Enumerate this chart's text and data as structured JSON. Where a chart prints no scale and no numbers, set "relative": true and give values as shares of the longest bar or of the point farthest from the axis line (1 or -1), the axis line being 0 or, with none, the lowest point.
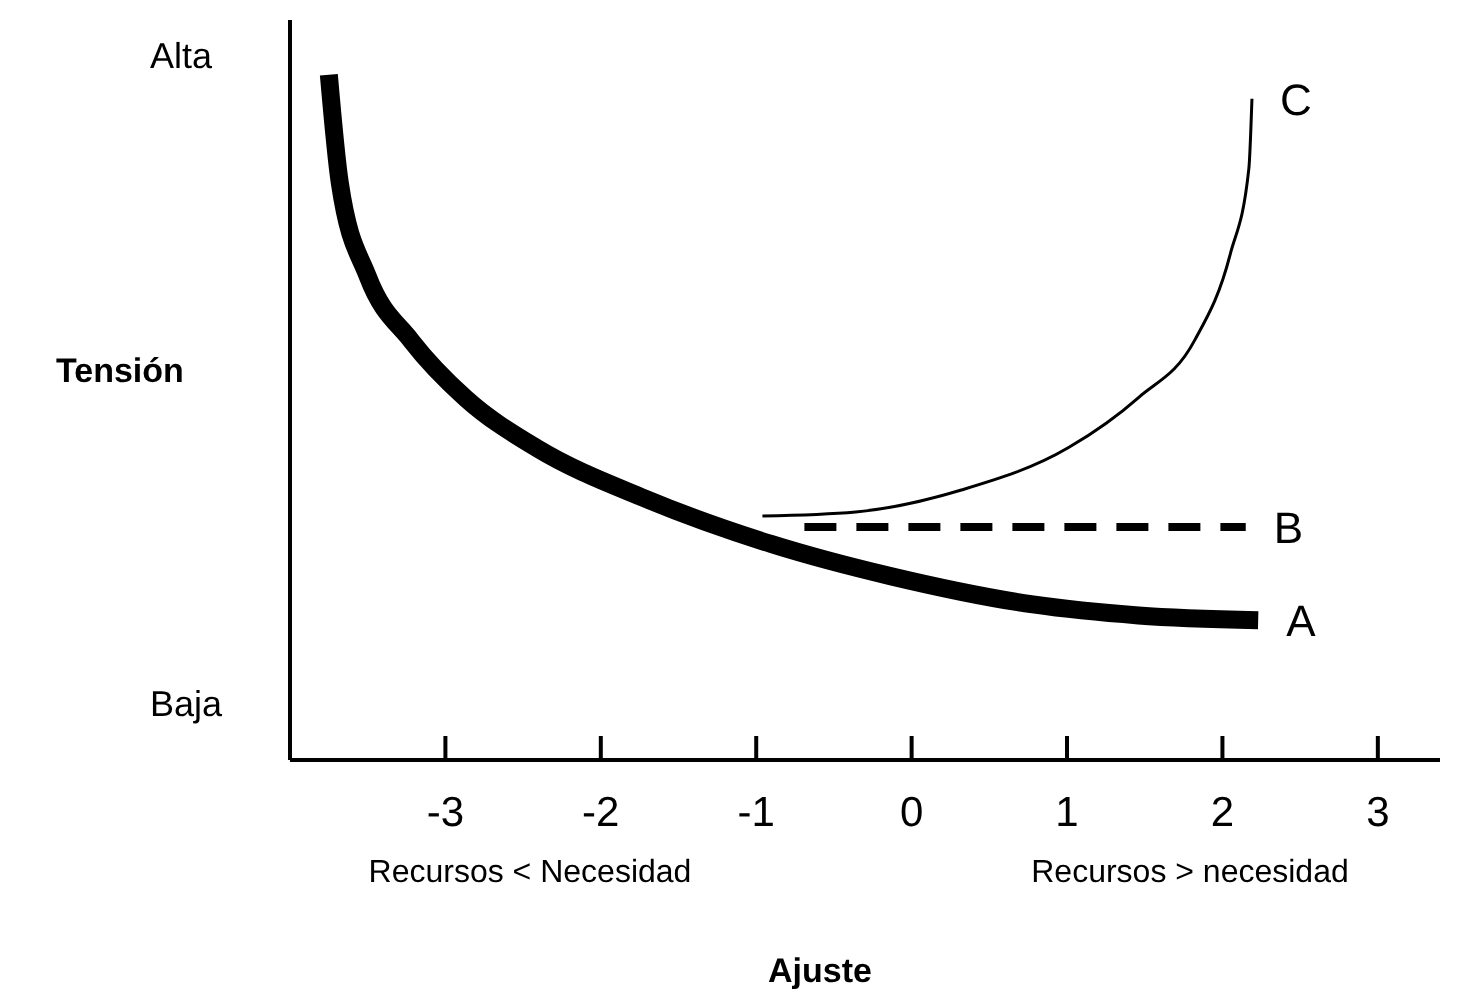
{
  "chart_data": {
    "type": "line",
    "relative": true,
    "xlabel": "Ajuste",
    "ylabel": "Tensión",
    "xlim": [
      -4,
      3.4
    ],
    "xticks": [
      -3,
      -2,
      -1,
      0,
      1,
      2,
      3
    ],
    "annotations": [
      "Alta",
      "Baja",
      "Recursos < Necesidad",
      "Recursos > necesidad"
    ],
    "marker": "none",
    "series": [
      {
        "name": "A",
        "color": "#000000",
        "line_style": "solid",
        "x": [
          -3.75,
          -3.68,
          -3.5,
          -3.22,
          -2.87,
          -2.41,
          -1.72,
          -0.9,
          -0.13,
          0.78,
          1.46,
          2.23
        ],
        "values": [
          1.0,
          0.843,
          0.706,
          0.612,
          0.528,
          0.455,
          0.382,
          0.315,
          0.268,
          0.227,
          0.211,
          0.204
        ]
      },
      {
        "name": "B",
        "color": "#000000",
        "line_style": "dashed",
        "x": [
          -0.69,
          2.15
        ],
        "values": [
          0.34,
          0.34
        ]
      },
      {
        "name": "C",
        "color": "#000000",
        "line_style": "solid",
        "x": [
          -0.96,
          -0.36,
          0.32,
          1.01,
          1.46,
          1.82,
          2.05,
          2.17,
          2.19
        ],
        "values": [
          0.356,
          0.362,
          0.394,
          0.456,
          0.529,
          0.612,
          0.738,
          0.863,
          0.965
        ]
      }
    ]
  }
}
